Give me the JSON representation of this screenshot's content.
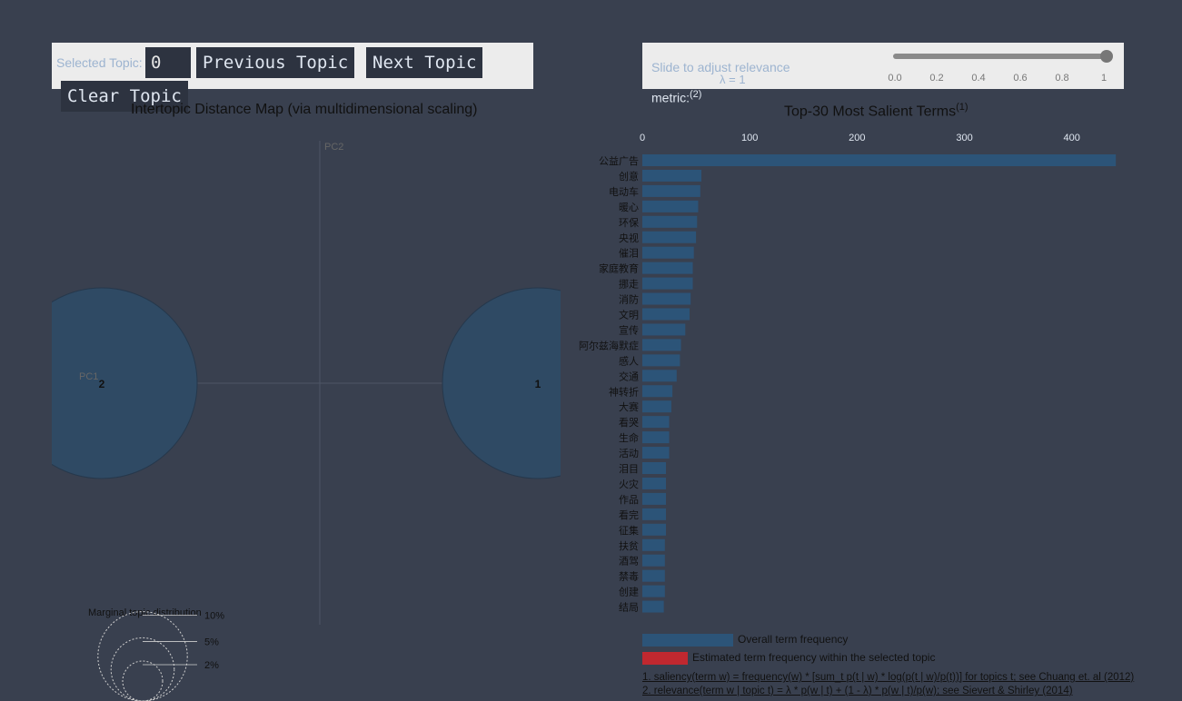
{
  "controls": {
    "selected_topic_label": "Selected Topic:",
    "selected_topic_value": "0",
    "prev_label": "Previous Topic",
    "next_label": "Next Topic",
    "clear_label": "Clear Topic",
    "slider_label": "Slide to adjust relevance",
    "lambda_text": "λ = 1",
    "metric_label": "metric:",
    "metric_sup": "(2)",
    "slider_ticks": [
      "0.0",
      "0.2",
      "0.4",
      "0.6",
      "0.8",
      "1"
    ],
    "lambda_value": 1
  },
  "colors": {
    "background": "#39404f",
    "panel": "#ececec",
    "bar_overall": "#2c5478",
    "bar_topic": "#c0282f",
    "circle_fill": "#2f4a64",
    "circle_stroke": "#26384c"
  },
  "chart_data": [
    {
      "type": "scatter",
      "title": "Intertopic Distance Map (via multidimensional scaling)",
      "xlabel": "PC1",
      "ylabel": "PC2",
      "topics": [
        {
          "label": "2",
          "x": -1,
          "y": 0,
          "marginal_pct": 50
        },
        {
          "label": "1",
          "x": 1,
          "y": 0,
          "marginal_pct": 50
        }
      ],
      "marginal_legend_title": "Marginal topic distribution",
      "marginal_legend": [
        {
          "label": "2%",
          "pct": 2
        },
        {
          "label": "5%",
          "pct": 5
        },
        {
          "label": "10%",
          "pct": 10
        }
      ]
    },
    {
      "type": "bar",
      "title": "Top-30 Most Salient Terms",
      "title_sup": "(1)",
      "x_ticks": [
        0,
        100,
        200,
        300,
        400
      ],
      "xlim": [
        0,
        440
      ],
      "categories": [
        "公益广告",
        "创意",
        "电动车",
        "暖心",
        "环保",
        "央视",
        "催泪",
        "家庭教育",
        "挪走",
        "消防",
        "文明",
        "宣传",
        "阿尔兹海默症",
        "感人",
        "交通",
        "神转折",
        "大赛",
        "看哭",
        "生命",
        "活动",
        "泪目",
        "火灾",
        "作品",
        "看完",
        "征集",
        "扶贫",
        "酒驾",
        "禁毒",
        "创建",
        "结局"
      ],
      "series": [
        {
          "name": "Overall term frequency",
          "values": [
            441,
            55,
            54,
            52,
            51,
            50,
            48,
            47,
            47,
            45,
            44,
            40,
            36,
            35,
            32,
            28,
            27,
            25,
            25,
            25,
            22,
            22,
            22,
            22,
            22,
            21,
            21,
            21,
            21,
            20
          ]
        }
      ],
      "legend": [
        {
          "label": "Overall term frequency"
        },
        {
          "label": "Estimated term frequency within the selected topic"
        }
      ]
    }
  ],
  "footnotes": [
    "1. saliency(term w) = frequency(w) * [sum_t p(t | w) * log(p(t | w)/p(t))] for topics t; see Chuang et. al (2012)",
    "2. relevance(term w | topic t) = λ * p(w | t) + (1 - λ) * p(w | t)/p(w); see Sievert & Shirley (2014)"
  ]
}
